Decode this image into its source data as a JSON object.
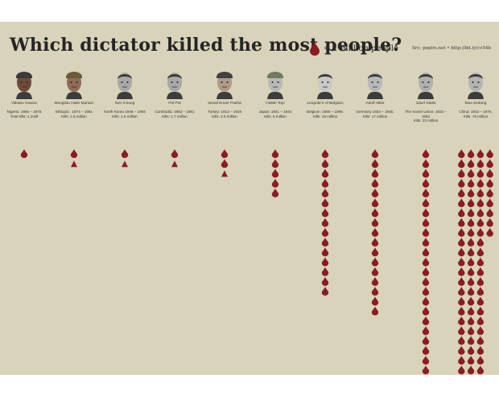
{
  "chart_data": {
    "type": "bar",
    "title": "Which dictator killed the most people?",
    "legend": "= 1 million people",
    "source": "Src: poplrs.net • http://bit.ly/cv54b",
    "unit": "million people",
    "series": [
      {
        "name": "Yakubu Gowon",
        "place": "Nigeria: 1966 – 1975",
        "kills_text": "Total kills: 1.1mill",
        "value": 1.1
      },
      {
        "name": "Mengistu Haile Mariam",
        "place": "Ethiopia : 1974 – 1991",
        "kills_text": "Kills: 1.5 million",
        "value": 1.5
      },
      {
        "name": "Kim Il Sung",
        "place": "North Korea 1948 – 1994",
        "kills_text": "Kills: 1.6 million",
        "value": 1.6
      },
      {
        "name": "Pol Pot",
        "place": "Cambodia: 1963 – 1981",
        "kills_text": "Kills: 1.7 million",
        "value": 1.7
      },
      {
        "name": "Ismail Enver Pasha",
        "place": "Turkey: 1913 – 1919",
        "kills_text": "Kills: 2.5 million",
        "value": 2.5
      },
      {
        "name": "Hideki Tojo",
        "place": "Japan: 1941 – 1944",
        "kills_text": "Kills: 5 million",
        "value": 5
      },
      {
        "name": "Leopold II of Belgium",
        "place": "Belgium: 1865 – 1909.",
        "kills_text": "Kills: 15 million",
        "value": 15
      },
      {
        "name": "Adolf Hitler",
        "place": "Germany 1934 – 1945.",
        "kills_text": "Kills: 17 million",
        "value": 17
      },
      {
        "name": "Josef Stalin",
        "place": "The Soviet Union: 1922 – 1953",
        "kills_text": "Kills: 23 million",
        "value": 23
      },
      {
        "name": "Mao Zedong",
        "place": "China: 1943 – 1976.",
        "kills_text": "Kills: 78 million",
        "value": 78
      }
    ]
  },
  "colors": {
    "background": "#d8d3ba",
    "drop": "#8a1c24",
    "text": "#252525"
  },
  "portraits": [
    {
      "icon": "portrait-icon",
      "skin": "#6e4a3a",
      "hat": "#3a3a3a"
    },
    {
      "icon": "portrait-icon",
      "skin": "#8f6a57",
      "hat": "#6b5a3a"
    },
    {
      "icon": "portrait-icon",
      "skin": "#a8a8a8",
      "hat": ""
    },
    {
      "icon": "portrait-icon",
      "skin": "#a8a8a8",
      "hat": ""
    },
    {
      "icon": "portrait-icon",
      "skin": "#b09a88",
      "hat": "#404040"
    },
    {
      "icon": "portrait-icon",
      "skin": "#b8b8b8",
      "hat": "#707a60"
    },
    {
      "icon": "portrait-icon",
      "skin": "#c8c8c8",
      "hat": ""
    },
    {
      "icon": "portrait-icon",
      "skin": "#b8b8b8",
      "hat": ""
    },
    {
      "icon": "portrait-icon",
      "skin": "#b0b0b0",
      "hat": ""
    },
    {
      "icon": "portrait-icon",
      "skin": "#b4b4b4",
      "hat": ""
    }
  ]
}
